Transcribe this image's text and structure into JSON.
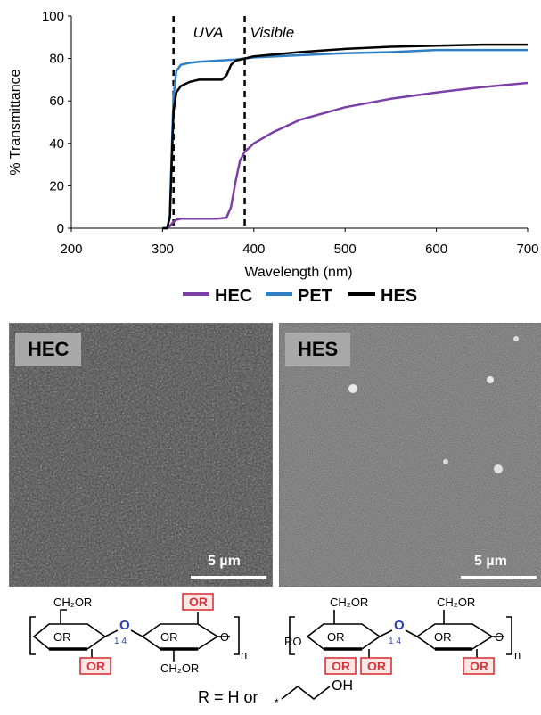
{
  "chart_data": {
    "type": "line",
    "xlabel": "Wavelength (nm)",
    "ylabel": "% Transmittance",
    "xlim": [
      200,
      700
    ],
    "ylim": [
      0,
      100
    ],
    "xticks": [
      200,
      300,
      400,
      500,
      600,
      700
    ],
    "yticks": [
      0,
      20,
      40,
      60,
      80,
      100
    ],
    "grid": false,
    "legend_position": "bottom",
    "annotations": [
      {
        "text": "UVA",
        "x": 350,
        "y": 90
      },
      {
        "text": "Visible",
        "x": 420,
        "y": 90
      }
    ],
    "reference_lines": [
      {
        "x": 312
      },
      {
        "x": 390
      }
    ],
    "series": [
      {
        "name": "HEC",
        "color": "#7b3fa6",
        "x": [
          300,
          305,
          308,
          310,
          312,
          315,
          320,
          330,
          340,
          350,
          360,
          370,
          375,
          380,
          385,
          390,
          400,
          420,
          450,
          500,
          550,
          600,
          650,
          700
        ],
        "y": [
          0,
          0,
          1,
          2,
          3,
          4,
          4.5,
          4.5,
          4.5,
          4.5,
          4.5,
          5,
          10,
          22,
          32,
          36,
          40,
          45,
          51,
          57,
          61,
          64,
          66.5,
          68.5
        ]
      },
      {
        "name": "PET",
        "color": "#2f7fc4",
        "x": [
          300,
          305,
          308,
          310,
          312,
          315,
          320,
          330,
          340,
          360,
          380,
          400,
          450,
          500,
          550,
          600,
          650,
          700
        ],
        "y": [
          0,
          0,
          6,
          35,
          62,
          74,
          77,
          78,
          78.5,
          79,
          79.5,
          80.5,
          81.5,
          82.5,
          83,
          84,
          84,
          84
        ]
      },
      {
        "name": "HES",
        "color": "#000000",
        "x": [
          300,
          305,
          308,
          310,
          312,
          315,
          320,
          330,
          340,
          350,
          360,
          365,
          370,
          375,
          380,
          390,
          400,
          450,
          500,
          550,
          600,
          650,
          700
        ],
        "y": [
          0,
          0,
          5,
          30,
          55,
          64,
          67,
          69,
          70,
          70,
          70,
          70,
          72,
          77,
          79,
          80,
          81,
          83,
          84.5,
          85.5,
          86,
          86.5,
          86.5
        ]
      }
    ]
  },
  "micrographs": [
    {
      "label": "HEC",
      "scale_bar": "5 µm"
    },
    {
      "label": "HES",
      "scale_bar": "5 µm"
    }
  ],
  "structures": {
    "hec": {
      "ch2or_top": "CH₂OR",
      "or_boxed_top": "OR",
      "or_left": "OR",
      "or_right": "OR",
      "link_o": "O",
      "link_nums": "1  4",
      "or_boxed_bottom": "OR",
      "ch2or_bottom": "CH₂OR",
      "ring_o_right": "O",
      "n": "n"
    },
    "hes": {
      "ch2or_left": "CH₂OR",
      "ch2or_right": "CH₂OR",
      "ro": "RO",
      "or_left": "OR",
      "or_right": "OR",
      "link_o": "O",
      "link_nums": "1  4",
      "or_boxed_1": "OR",
      "or_boxed_2": "OR",
      "or_boxed_3": "OR",
      "ring_o_right": "O",
      "n": "n"
    },
    "r_definition": "R = H or",
    "oh": "OH",
    "star": "*"
  },
  "colors": {
    "box_red": "#d9343a",
    "link_blue": "#2a3fb0"
  }
}
